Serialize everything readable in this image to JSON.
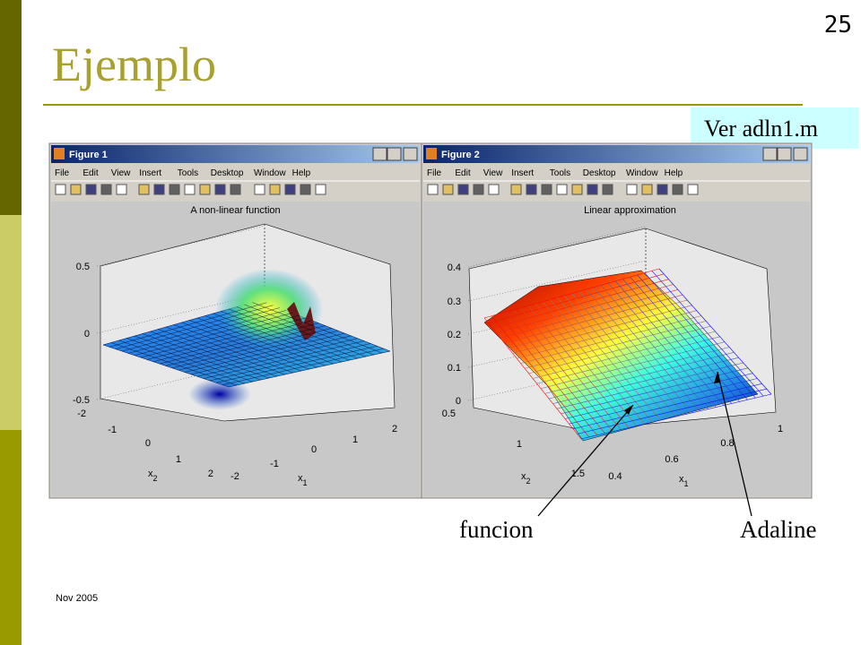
{
  "slide": {
    "title": "Ejemplo",
    "page_number": "25",
    "footer": "Nov 2005",
    "callout": "Ver adln1.m",
    "annotations": [
      "funcion",
      "Adaline"
    ]
  },
  "menu": [
    "File",
    "Edit",
    "View",
    "Insert",
    "Tools",
    "Desktop",
    "Window",
    "Help"
  ],
  "figures": [
    {
      "window_title": "Figure 1",
      "plot_title": "A non-linear function",
      "z_ticks": [
        "0.5",
        "0",
        "-0.5"
      ],
      "x2_ticks": [
        "-2",
        "-1",
        "0",
        "1",
        "2"
      ],
      "x1_ticks": [
        "-2",
        "-1",
        "0",
        "1",
        "2"
      ],
      "x2_label": {
        "base": "x",
        "sub": "2"
      },
      "x1_label": {
        "base": "x",
        "sub": "1"
      }
    },
    {
      "window_title": "Figure 2",
      "plot_title": "Linear approximation",
      "z_ticks": [
        "0.4",
        "0.3",
        "0.2",
        "0.1",
        "0"
      ],
      "x2_ticks": [
        "0.5",
        "1",
        "1.5"
      ],
      "x1_ticks": [
        "0.4",
        "0.6",
        "0.8",
        "1"
      ],
      "x2_label": {
        "base": "x",
        "sub": "2"
      },
      "x1_label": {
        "base": "x",
        "sub": "1"
      }
    }
  ]
}
